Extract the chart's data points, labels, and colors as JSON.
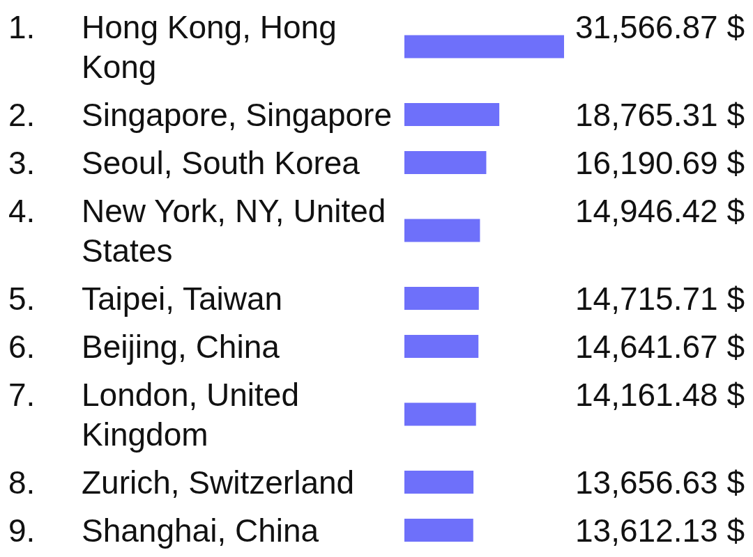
{
  "chart_data": {
    "type": "bar",
    "orientation": "horizontal",
    "categories": [
      "1. Hong Kong, Hong Kong",
      "2. Singapore, Singapore",
      "3. Seoul, South Korea",
      "4. New York, NY, United States",
      "5. Taipei, Taiwan",
      "6. Beijing, China",
      "7. London, United Kingdom",
      "8. Zurich, Switzerland",
      "9. Shanghai, China"
    ],
    "values": [
      31566.87,
      18765.31,
      16190.69,
      14946.42,
      14715.71,
      14641.67,
      14161.48,
      13656.63,
      13612.13
    ],
    "value_labels": [
      "31,566.87 $",
      "18,765.31 $",
      "16,190.69 $",
      "14,946.42 $",
      "14,715.71 $",
      "14,641.67 $",
      "14,161.48 $",
      "13,656.63 $",
      "13,612.13 $"
    ],
    "color": "#6e70fa"
  }
}
